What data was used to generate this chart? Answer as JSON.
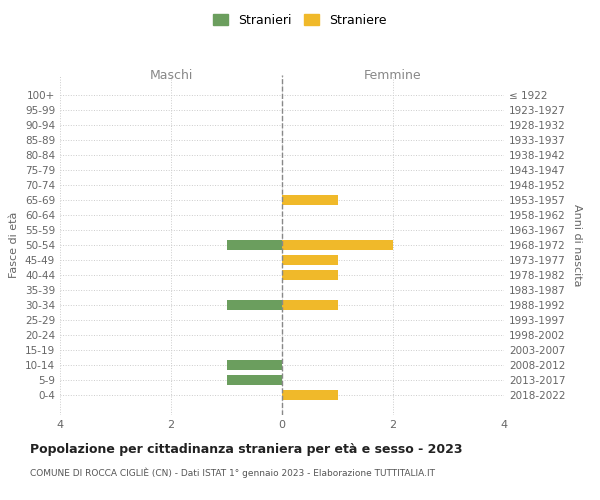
{
  "age_groups": [
    "100+",
    "95-99",
    "90-94",
    "85-89",
    "80-84",
    "75-79",
    "70-74",
    "65-69",
    "60-64",
    "55-59",
    "50-54",
    "45-49",
    "40-44",
    "35-39",
    "30-34",
    "25-29",
    "20-24",
    "15-19",
    "10-14",
    "5-9",
    "0-4"
  ],
  "birth_years": [
    "≤ 1922",
    "1923-1927",
    "1928-1932",
    "1933-1937",
    "1938-1942",
    "1943-1947",
    "1948-1952",
    "1953-1957",
    "1958-1962",
    "1963-1967",
    "1968-1972",
    "1973-1977",
    "1978-1982",
    "1983-1987",
    "1988-1992",
    "1993-1997",
    "1998-2002",
    "2003-2007",
    "2008-2012",
    "2013-2017",
    "2018-2022"
  ],
  "males": [
    0,
    0,
    0,
    0,
    0,
    0,
    0,
    0,
    0,
    0,
    -1,
    0,
    0,
    0,
    -1,
    0,
    0,
    0,
    -1,
    -1,
    0
  ],
  "females": [
    0,
    0,
    0,
    0,
    0,
    0,
    0,
    1,
    0,
    0,
    2,
    1,
    1,
    0,
    1,
    0,
    0,
    0,
    0,
    0,
    1
  ],
  "male_color": "#6b9e5e",
  "female_color": "#f0b92a",
  "background_color": "#ffffff",
  "grid_color": "#cccccc",
  "title": "Popolazione per cittadinanza straniera per età e sesso - 2023",
  "subtitle": "COMUNE DI ROCCA CIGLIÈ (CN) - Dati ISTAT 1° gennaio 2023 - Elaborazione TUTTITALIA.IT",
  "xlabel_left": "Maschi",
  "xlabel_right": "Femmine",
  "ylabel_left": "Fasce di età",
  "ylabel_right": "Anni di nascita",
  "legend_stranieri": "Stranieri",
  "legend_straniere": "Straniere",
  "xlim": [
    -4,
    4
  ],
  "xticks": [
    -4,
    -2,
    0,
    2,
    4
  ],
  "xtick_labels": [
    "4",
    "2",
    "0",
    "2",
    "4"
  ]
}
